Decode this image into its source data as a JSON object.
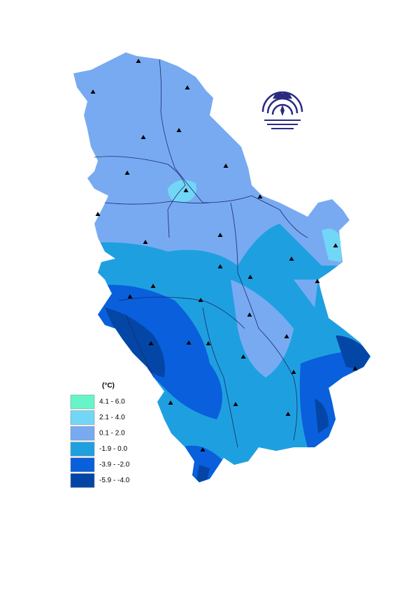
{
  "legend": {
    "title": "(°C)",
    "items": [
      {
        "label": "4.1 - 6.0",
        "color": "#66f5c8"
      },
      {
        "label": "2.1 - 4.0",
        "color": "#72d6f7"
      },
      {
        "label": "0.1 - 2.0",
        "color": "#78aaf2"
      },
      {
        "label": "-1.9 - 0.0",
        "color": "#1ea0e0"
      },
      {
        "label": "-3.9 - -2.0",
        "color": "#0a5fdc"
      },
      {
        "label": "-5.9 - -4.0",
        "color": "#0446a6"
      }
    ]
  }
}
